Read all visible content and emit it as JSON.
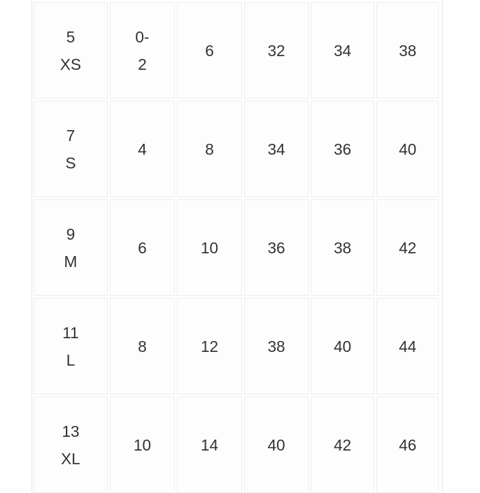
{
  "rows": [
    [
      [
        "5",
        "XS"
      ],
      [
        "0-",
        "2"
      ],
      [
        "6"
      ],
      [
        "32"
      ],
      [
        "34"
      ],
      [
        "38"
      ]
    ],
    [
      [
        "7",
        "S"
      ],
      [
        "4"
      ],
      [
        "8"
      ],
      [
        "34"
      ],
      [
        "36"
      ],
      [
        "40"
      ]
    ],
    [
      [
        "9",
        "M"
      ],
      [
        "6"
      ],
      [
        "10"
      ],
      [
        "36"
      ],
      [
        "38"
      ],
      [
        "42"
      ]
    ],
    [
      [
        "11",
        "L"
      ],
      [
        "8"
      ],
      [
        "12"
      ],
      [
        "38"
      ],
      [
        "40"
      ],
      [
        "44"
      ]
    ],
    [
      [
        "13",
        "XL"
      ],
      [
        "10"
      ],
      [
        "14"
      ],
      [
        "40"
      ],
      [
        "42"
      ],
      [
        "46"
      ]
    ]
  ]
}
